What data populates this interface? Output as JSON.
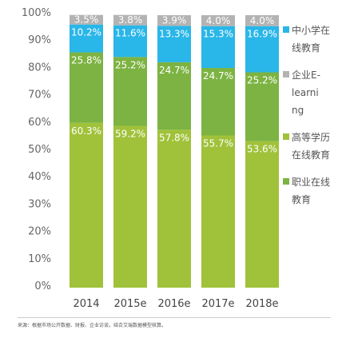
{
  "chart_data": {
    "type": "bar",
    "stacked": true,
    "percent": true,
    "categories": [
      "2014",
      "2015e",
      "2016e",
      "2017e",
      "2018e"
    ],
    "series": [
      {
        "name": "高等学历在线教育",
        "color": "#a0c23a",
        "values": [
          60.3,
          59.2,
          57.8,
          55.7,
          53.6
        ]
      },
      {
        "name": "职业在线教育",
        "color": "#7cb342",
        "values": [
          25.8,
          25.2,
          24.7,
          24.7,
          25.2
        ]
      },
      {
        "name": "中小学在线教育",
        "color": "#29b6e8",
        "values": [
          10.2,
          11.6,
          13.3,
          15.3,
          16.9
        ]
      },
      {
        "name": "企业E-learning",
        "color": "#b3b3b3",
        "values": [
          3.5,
          3.8,
          3.9,
          4.0,
          4.0
        ]
      }
    ],
    "legend_order": [
      2,
      3,
      0,
      1
    ],
    "yticks": [
      "0%",
      "10%",
      "20%",
      "30%",
      "40%",
      "50%",
      "60%",
      "70%",
      "80%",
      "90%",
      "100%"
    ],
    "ylim": [
      0,
      100
    ],
    "legend": "right",
    "grid": false
  },
  "source": "来源：根据市场公开数据、财报、企业访谈，结合艾瑞数据模型核算。"
}
